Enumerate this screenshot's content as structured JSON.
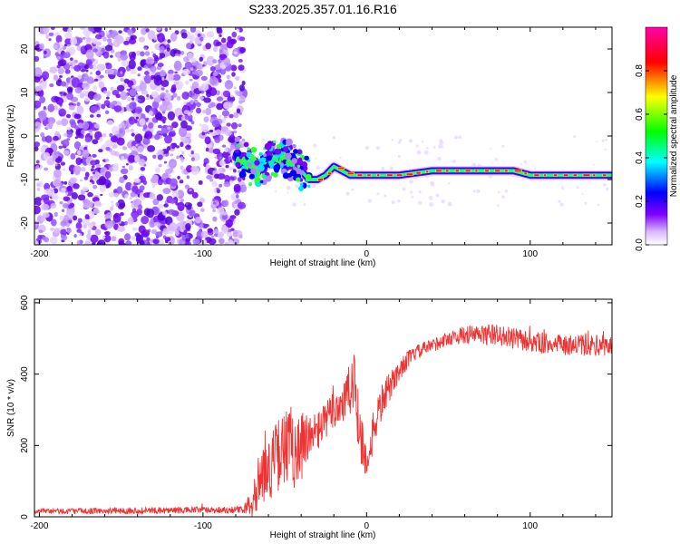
{
  "title": "S233.2025.357.01.16.R16",
  "chart_data": [
    {
      "type": "heatmap",
      "name": "spectrogram",
      "xlabel": "Height of straight line (km)",
      "ylabel": "Frequency (Hz)",
      "xlim": [
        -203,
        150
      ],
      "ylim": [
        -25,
        25
      ],
      "xticks": [
        -200,
        -100,
        0,
        100
      ],
      "yticks": [
        -20,
        -10,
        0,
        10,
        20
      ],
      "colorbar": {
        "label": "Normalized spectral amplitude",
        "range": [
          0.0,
          1.0
        ],
        "ticks": [
          "0.0",
          "0.2",
          "0.4",
          "0.6",
          "0.8"
        ],
        "tick_values": [
          0.0,
          0.2,
          0.4,
          0.6,
          0.8
        ],
        "colors": [
          "#ffffff",
          "#d8b8ff",
          "#8000ff",
          "#0000ff",
          "#00ffff",
          "#00ff00",
          "#ffff00",
          "#ff0000",
          "#ff00aa"
        ]
      },
      "noise_region_x": [
        -203,
        -75
      ],
      "signal_track": {
        "x": [
          -80,
          -75,
          -70,
          -65,
          -60,
          -55,
          -50,
          -45,
          -40,
          -35,
          -30,
          -25,
          -20,
          -15,
          -10,
          -5,
          0,
          20,
          40,
          60,
          80,
          90,
          100,
          120,
          150
        ],
        "freq": [
          -5,
          -6,
          -7,
          -7,
          -6,
          -5,
          -5,
          -6,
          -8,
          -10,
          -10,
          -9,
          -7,
          -8,
          -9,
          -9,
          -9,
          -9,
          -8,
          -8,
          -8,
          -8,
          -9,
          -9,
          -9
        ]
      }
    },
    {
      "type": "line",
      "name": "snr",
      "xlabel": "Height of straight line (km)",
      "ylabel": "SNR (10 * v/v)",
      "xlim": [
        -203,
        150
      ],
      "ylim": [
        0,
        610
      ],
      "xticks": [
        -200,
        -100,
        0,
        100
      ],
      "yticks": [
        0,
        200,
        400,
        600
      ],
      "color": "#ee3333",
      "envelope": {
        "x": [
          -203,
          -75,
          -70,
          -65,
          -60,
          -55,
          -50,
          -45,
          -40,
          -35,
          -30,
          -25,
          -20,
          -15,
          -10,
          -7,
          -4,
          0,
          5,
          10,
          15,
          20,
          25,
          30,
          40,
          50,
          60,
          70,
          80,
          90,
          100,
          120,
          150
        ],
        "mean": [
          15,
          20,
          50,
          110,
          130,
          170,
          190,
          200,
          190,
          210,
          240,
          270,
          300,
          320,
          350,
          360,
          250,
          140,
          260,
          330,
          370,
          410,
          440,
          460,
          480,
          500,
          510,
          510,
          510,
          500,
          490,
          480,
          480
        ],
        "spread": [
          8,
          10,
          60,
          80,
          90,
          100,
          110,
          120,
          120,
          80,
          60,
          50,
          60,
          70,
          80,
          130,
          100,
          40,
          60,
          50,
          40,
          30,
          25,
          20,
          20,
          20,
          25,
          30,
          30,
          30,
          30,
          30,
          30
        ]
      }
    }
  ]
}
